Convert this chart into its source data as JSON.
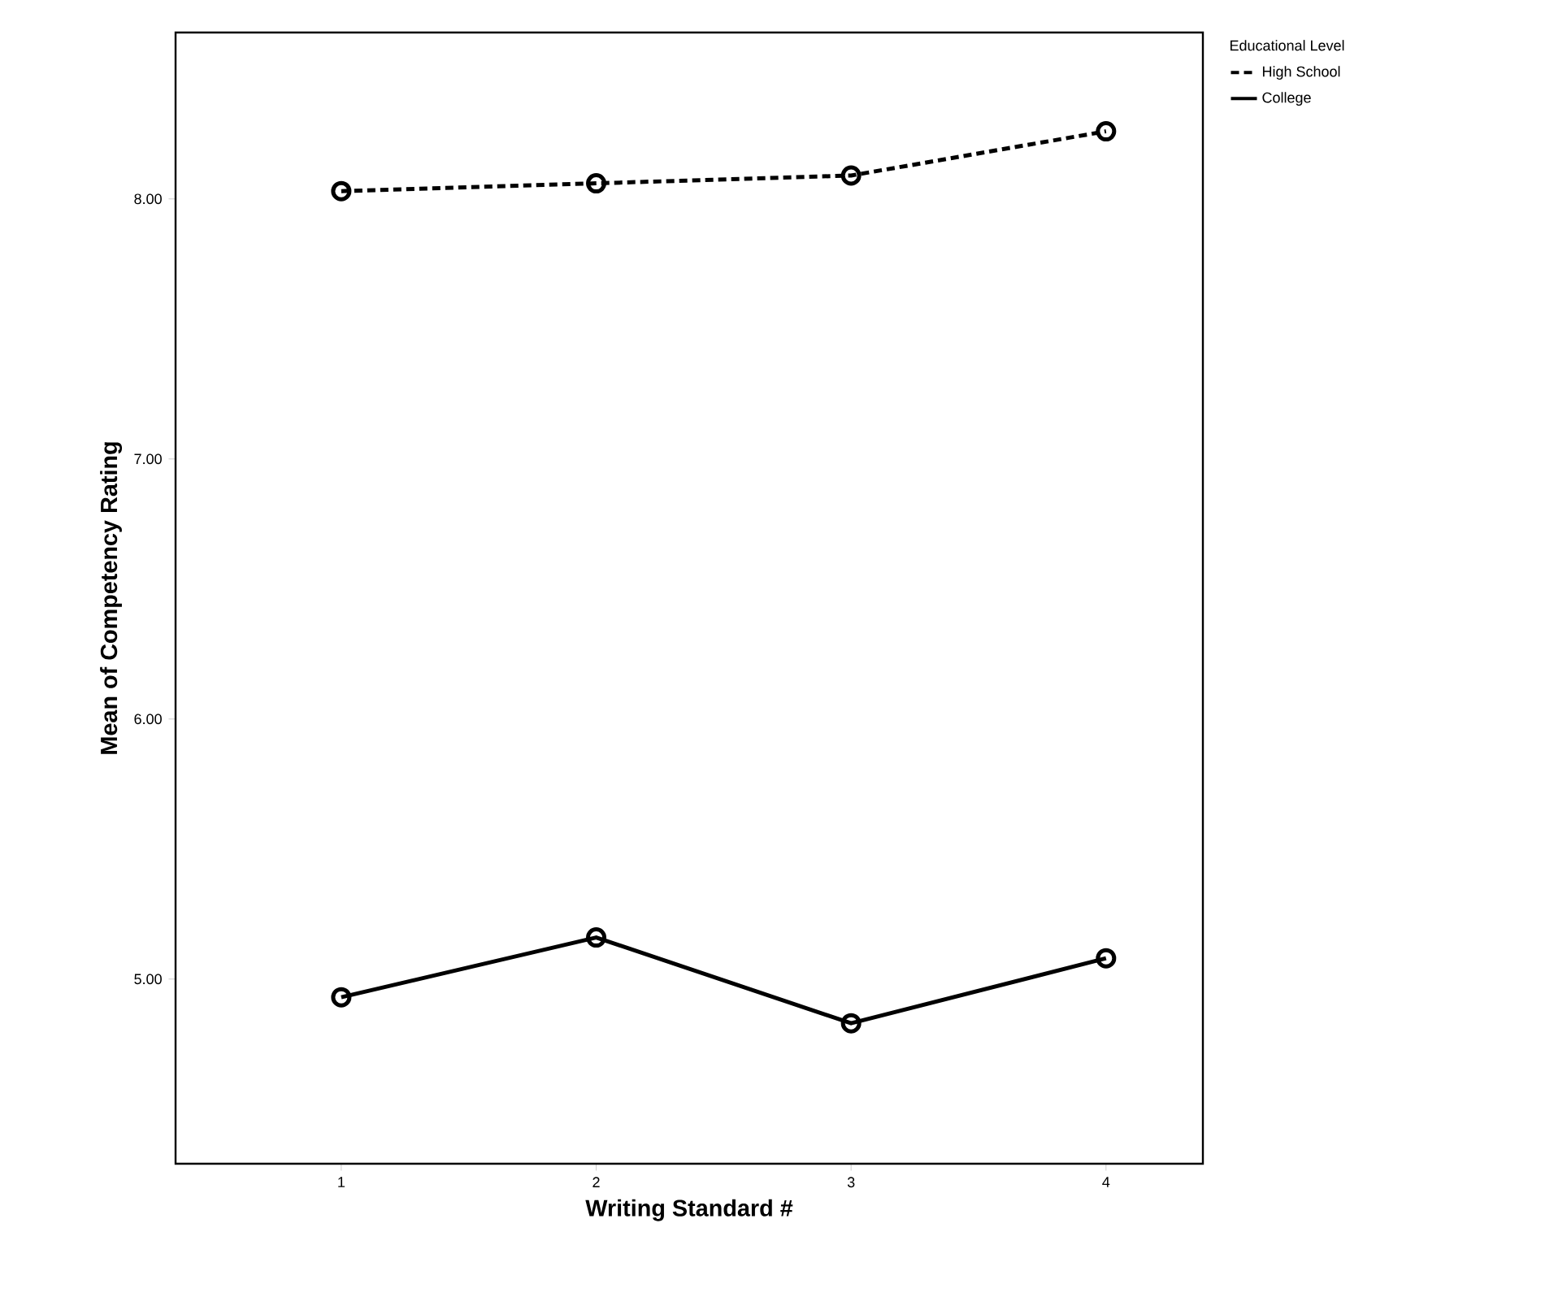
{
  "chart_data": {
    "type": "line",
    "xlabel": "Writing Standard #",
    "ylabel": "Mean of Competency Rating",
    "legend_title": "Educational Level",
    "categories": [
      "1",
      "2",
      "3",
      "4"
    ],
    "series": [
      {
        "name": "High School",
        "color": "#000000",
        "line_style": "dashed",
        "values": [
          8.03,
          8.06,
          8.09,
          8.26
        ]
      },
      {
        "name": "College",
        "color": "#000000",
        "line_style": "solid",
        "values": [
          4.93,
          5.16,
          4.83,
          5.08
        ]
      }
    ],
    "ylim": [
      4.29,
      8.64
    ],
    "yticks": [
      {
        "value": 5,
        "label": "5.00"
      },
      {
        "value": 6,
        "label": "6.00"
      },
      {
        "value": 7,
        "label": "7.00"
      },
      {
        "value": 8,
        "label": "8.00"
      }
    ],
    "marker": "circle",
    "legend": "top right",
    "grid": false
  }
}
